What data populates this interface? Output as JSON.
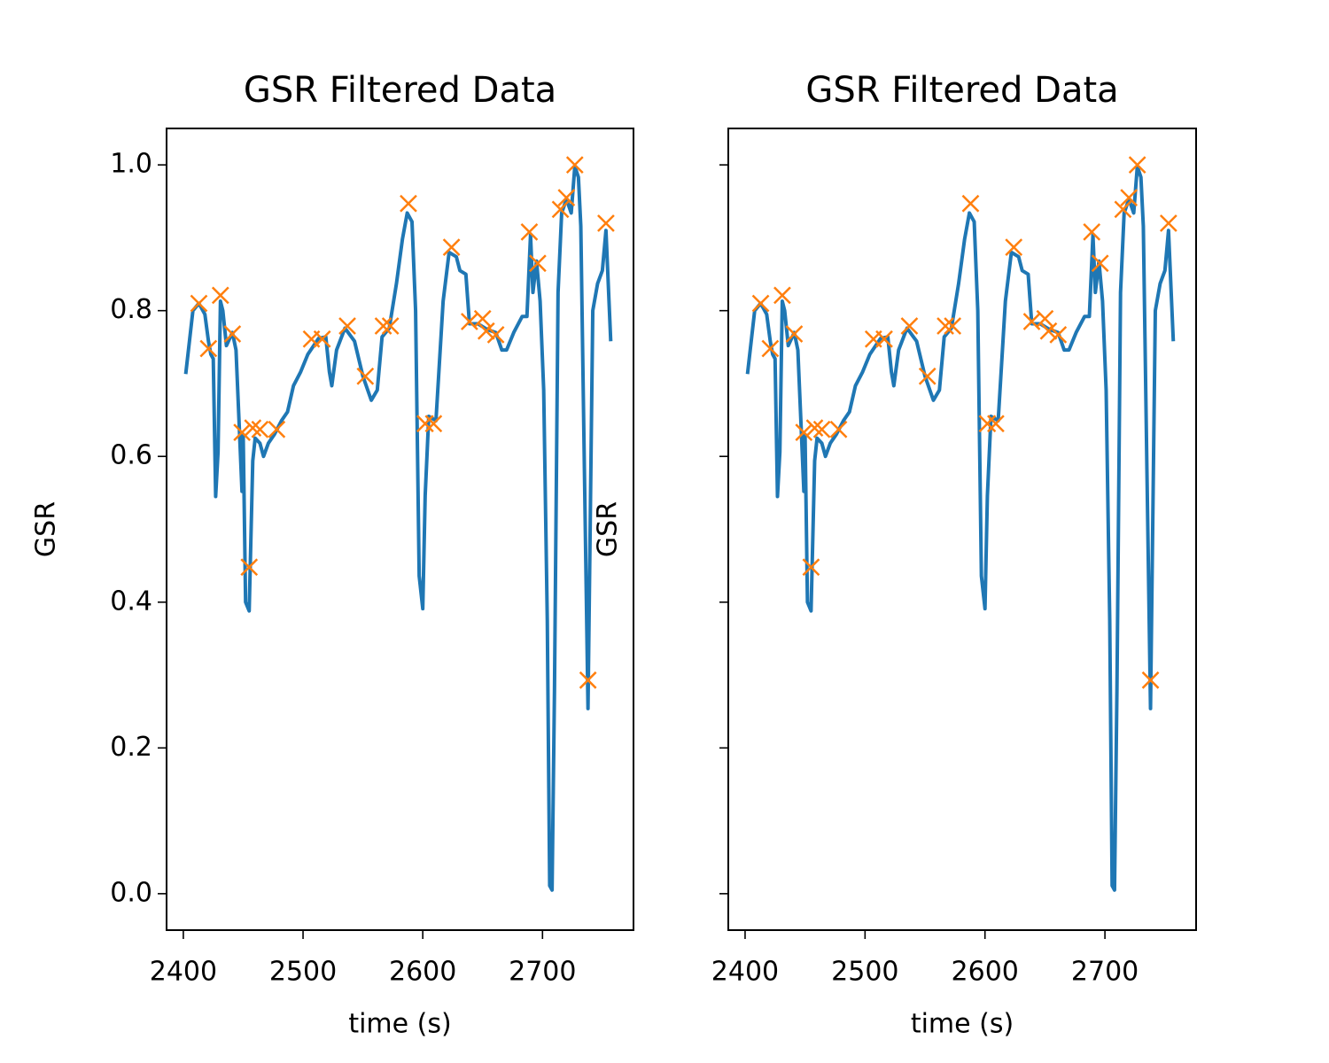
{
  "chart_data": [
    {
      "type": "line",
      "title": "GSR Filtered Data",
      "xlabel": "time (s)",
      "ylabel": "GSR",
      "xlim": [
        2386,
        2776
      ],
      "ylim": [
        -0.05,
        1.05
      ],
      "xticks": [
        2400,
        2500,
        2600,
        2700
      ],
      "yticks": [
        {
          "value": 0,
          "label": "0.0"
        },
        0.2,
        0.4,
        0.6,
        0.8,
        {
          "value": 1,
          "label": "1.0"
        }
      ],
      "series": [
        {
          "color": "#1f77b4",
          "marker": "none",
          "x": [
            2402,
            2408,
            2413,
            2418,
            2421,
            2423,
            2425,
            2427,
            2429,
            2431,
            2433,
            2436,
            2441,
            2444,
            2447,
            2449,
            2450,
            2452,
            2455,
            2458,
            2460,
            2464,
            2467,
            2471,
            2476,
            2482,
            2487,
            2492,
            2498,
            2504,
            2513,
            2519,
            2522,
            2524,
            2528,
            2535,
            2543,
            2550,
            2557,
            2562,
            2566,
            2572,
            2578,
            2583,
            2587,
            2591,
            2594,
            2597,
            2600,
            2602,
            2605,
            2611,
            2617,
            2622,
            2628,
            2631,
            2636,
            2639,
            2646,
            2654,
            2661,
            2666,
            2670,
            2676,
            2683,
            2687,
            2690,
            2692,
            2695,
            2698,
            2701,
            2704,
            2706,
            2708,
            2710,
            2713,
            2716,
            2720,
            2724,
            2727,
            2730,
            2732,
            2735,
            2738,
            2742,
            2746,
            2750,
            2753,
            2757
          ],
          "values": [
            0.713,
            0.8,
            0.81,
            0.795,
            0.758,
            0.74,
            0.734,
            0.545,
            0.606,
            0.813,
            0.8,
            0.752,
            0.77,
            0.746,
            0.63,
            0.552,
            0.63,
            0.4,
            0.388,
            0.594,
            0.625,
            0.618,
            0.6,
            0.618,
            0.63,
            0.649,
            0.661,
            0.697,
            0.716,
            0.74,
            0.762,
            0.764,
            0.716,
            0.697,
            0.746,
            0.776,
            0.758,
            0.71,
            0.677,
            0.691,
            0.764,
            0.776,
            0.837,
            0.898,
            0.934,
            0.922,
            0.8,
            0.436,
            0.391,
            0.546,
            0.655,
            0.649,
            0.813,
            0.88,
            0.874,
            0.855,
            0.85,
            0.782,
            0.782,
            0.774,
            0.77,
            0.746,
            0.746,
            0.77,
            0.792,
            0.792,
            0.904,
            0.825,
            0.868,
            0.813,
            0.691,
            0.375,
            0.011,
            0.005,
            0.278,
            0.825,
            0.934,
            0.953,
            0.934,
            0.998,
            0.983,
            0.916,
            0.582,
            0.254,
            0.8,
            0.837,
            0.855,
            0.91,
            0.758
          ]
        },
        {
          "color": "#ff7f0e",
          "marker": "x",
          "x": [
            2413,
            2421,
            2431,
            2441,
            2449,
            2455,
            2458,
            2464,
            2478,
            2507,
            2516,
            2537,
            2552,
            2567,
            2573,
            2588,
            2602,
            2609,
            2624,
            2639,
            2650,
            2653,
            2661,
            2689,
            2696,
            2715,
            2720,
            2727,
            2738,
            2753
          ],
          "values": [
            0.81,
            0.748,
            0.821,
            0.768,
            0.633,
            0.448,
            0.639,
            0.637,
            0.637,
            0.761,
            0.761,
            0.779,
            0.71,
            0.779,
            0.779,
            0.947,
            0.645,
            0.645,
            0.887,
            0.785,
            0.789,
            0.772,
            0.767,
            0.908,
            0.865,
            0.939,
            0.955,
            1.0,
            0.293,
            0.92
          ]
        }
      ]
    },
    {
      "type": "line",
      "title": "GSR Filtered Data",
      "xlabel": "time (s)",
      "ylabel": "GSR",
      "sharey": true,
      "xlim": [
        2386,
        2776
      ],
      "ylim": [
        -0.05,
        1.05
      ],
      "xticks": [
        2400,
        2500,
        2600,
        2700
      ],
      "yticks": [
        0,
        0.2,
        0.4,
        0.6,
        0.8,
        1
      ],
      "series": [
        {
          "color": "#1f77b4",
          "marker": "none",
          "x": [
            2402,
            2408,
            2413,
            2418,
            2421,
            2423,
            2425,
            2427,
            2429,
            2431,
            2433,
            2436,
            2441,
            2444,
            2447,
            2449,
            2450,
            2452,
            2455,
            2458,
            2460,
            2464,
            2467,
            2471,
            2476,
            2482,
            2487,
            2492,
            2498,
            2504,
            2513,
            2519,
            2522,
            2524,
            2528,
            2535,
            2543,
            2550,
            2557,
            2562,
            2566,
            2572,
            2578,
            2583,
            2587,
            2591,
            2594,
            2597,
            2600,
            2602,
            2605,
            2611,
            2617,
            2622,
            2628,
            2631,
            2636,
            2639,
            2646,
            2654,
            2661,
            2666,
            2670,
            2676,
            2683,
            2687,
            2690,
            2692,
            2695,
            2698,
            2701,
            2704,
            2706,
            2708,
            2710,
            2713,
            2716,
            2720,
            2724,
            2727,
            2730,
            2732,
            2735,
            2738,
            2742,
            2746,
            2750,
            2753,
            2757
          ],
          "values": [
            0.713,
            0.8,
            0.81,
            0.795,
            0.758,
            0.74,
            0.734,
            0.545,
            0.606,
            0.813,
            0.8,
            0.752,
            0.77,
            0.746,
            0.63,
            0.552,
            0.63,
            0.4,
            0.388,
            0.594,
            0.625,
            0.618,
            0.6,
            0.618,
            0.63,
            0.649,
            0.661,
            0.697,
            0.716,
            0.74,
            0.762,
            0.764,
            0.716,
            0.697,
            0.746,
            0.776,
            0.758,
            0.71,
            0.677,
            0.691,
            0.764,
            0.776,
            0.837,
            0.898,
            0.934,
            0.922,
            0.8,
            0.436,
            0.391,
            0.546,
            0.655,
            0.649,
            0.813,
            0.88,
            0.874,
            0.855,
            0.85,
            0.782,
            0.782,
            0.774,
            0.77,
            0.746,
            0.746,
            0.77,
            0.792,
            0.792,
            0.904,
            0.825,
            0.868,
            0.813,
            0.691,
            0.375,
            0.011,
            0.005,
            0.278,
            0.825,
            0.934,
            0.953,
            0.934,
            0.998,
            0.983,
            0.916,
            0.582,
            0.254,
            0.8,
            0.837,
            0.855,
            0.91,
            0.758
          ]
        },
        {
          "color": "#ff7f0e",
          "marker": "x",
          "x": [
            2413,
            2421,
            2431,
            2441,
            2449,
            2455,
            2458,
            2464,
            2478,
            2507,
            2516,
            2537,
            2552,
            2567,
            2573,
            2588,
            2602,
            2609,
            2624,
            2639,
            2650,
            2653,
            2661,
            2689,
            2696,
            2715,
            2720,
            2727,
            2738,
            2753
          ],
          "values": [
            0.81,
            0.748,
            0.821,
            0.768,
            0.633,
            0.448,
            0.639,
            0.637,
            0.637,
            0.761,
            0.761,
            0.779,
            0.71,
            0.779,
            0.779,
            0.947,
            0.645,
            0.645,
            0.887,
            0.785,
            0.789,
            0.772,
            0.767,
            0.908,
            0.865,
            0.939,
            0.955,
            1.0,
            0.293,
            0.92
          ]
        }
      ]
    }
  ]
}
